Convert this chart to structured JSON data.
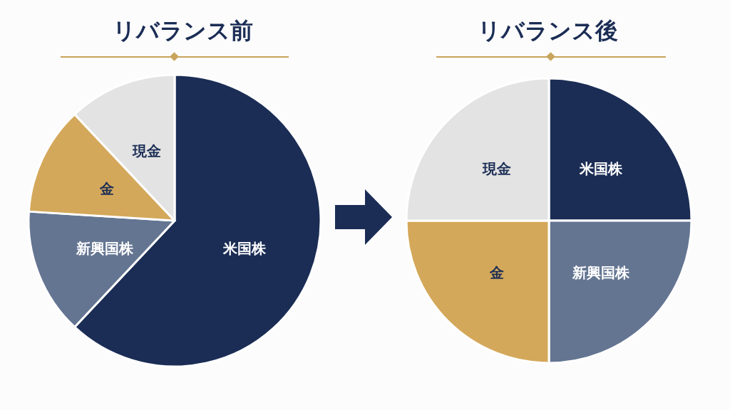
{
  "chart_data": [
    {
      "type": "pie",
      "title": "リバランス前",
      "categories": [
        "米国株",
        "新興国株",
        "金",
        "現金"
      ],
      "values": [
        62,
        14,
        12,
        12
      ],
      "colors": [
        "#1b2d55",
        "#647592",
        "#d4a85a",
        "#e3e3e3"
      ]
    },
    {
      "type": "pie",
      "title": "リバランス後",
      "categories": [
        "米国株",
        "新興国株",
        "金",
        "現金"
      ],
      "values": [
        25,
        25,
        25,
        25
      ],
      "colors": [
        "#1b2d55",
        "#647592",
        "#d4a85a",
        "#e3e3e3"
      ]
    }
  ]
}
